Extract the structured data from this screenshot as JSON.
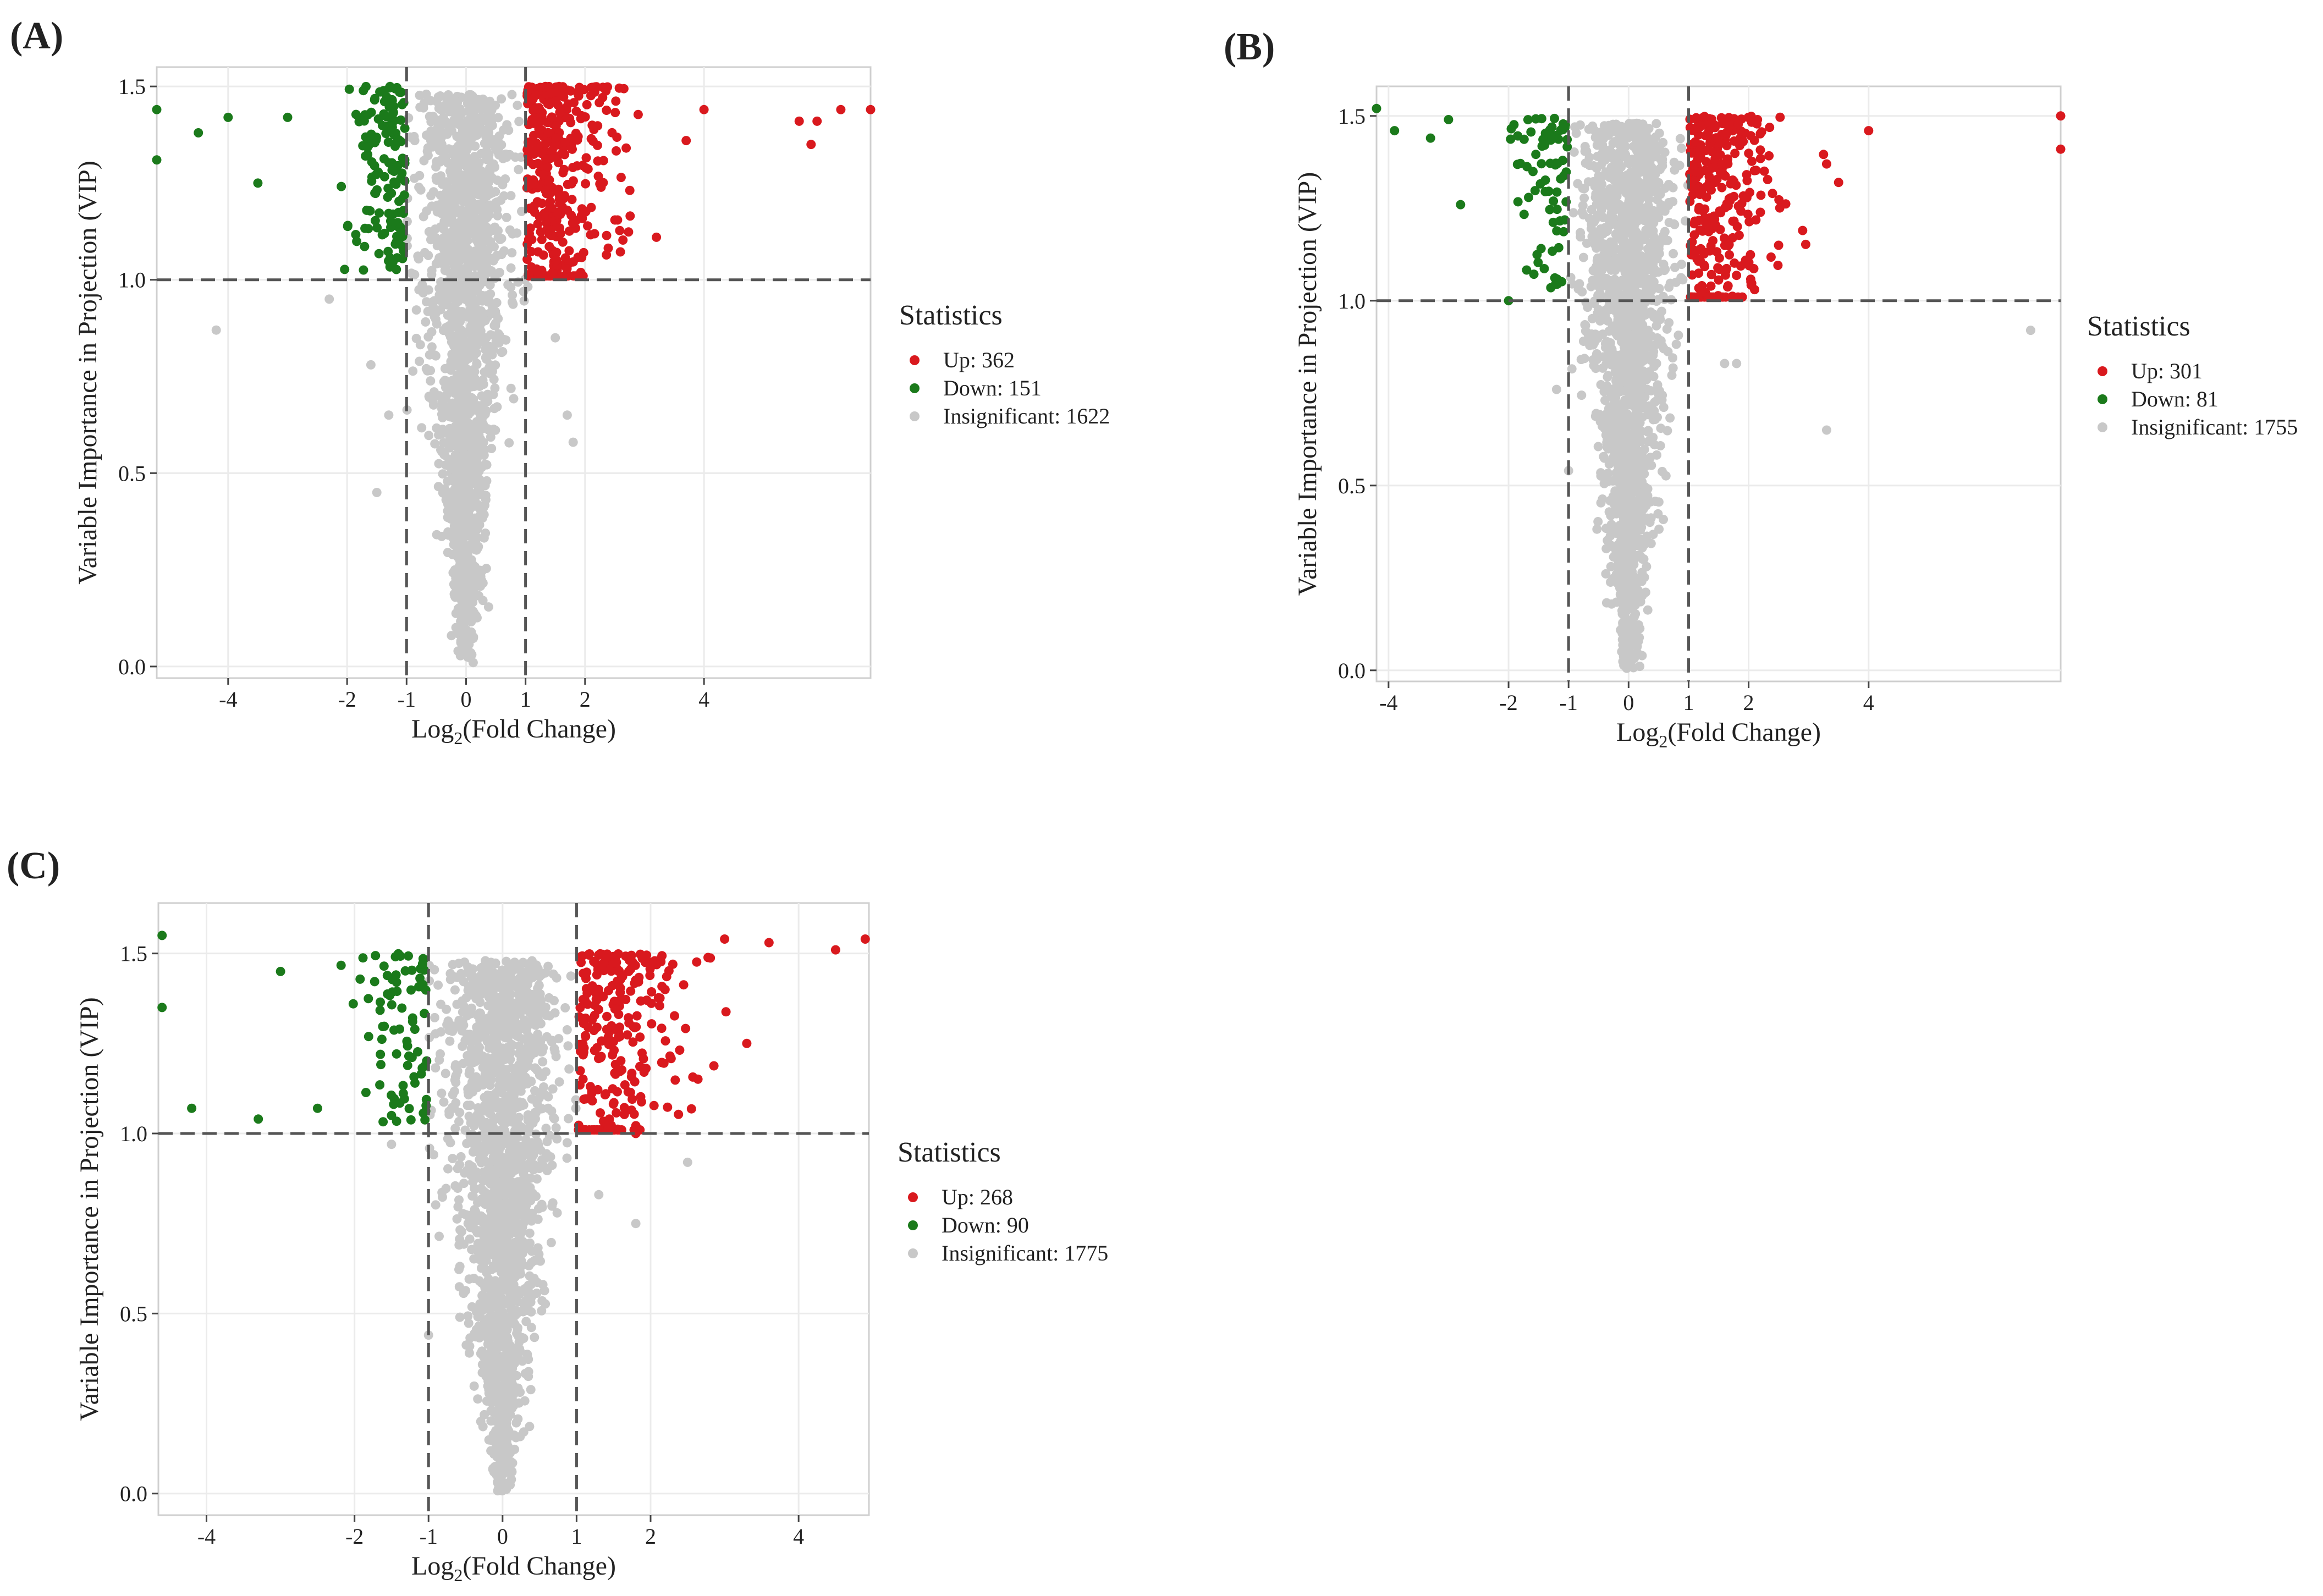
{
  "figure": {
    "theme": {
      "up_color": "#d9191e",
      "down_color": "#1b7a1b",
      "insig_color": "#c8c8c8",
      "grid_color": "#ebebeb",
      "frame_color": "#cfcfcf",
      "dashed_color": "#555555",
      "text_color": "#222222"
    }
  },
  "chart_data": [
    {
      "type": "scatter",
      "panel_label": "(A)",
      "title": "",
      "xlabel": "Log2(Fold Change)",
      "xlabel_main": "Log",
      "xlabel_sub": "2",
      "xlabel_rest": "(Fold Change)",
      "ylabel": "Variable Importance in Projection (VIP)",
      "xlim": [
        -5.2,
        6.8
      ],
      "ylim": [
        -0.03,
        1.55
      ],
      "xticks": [
        -4,
        -2,
        -1,
        0,
        1,
        2,
        4
      ],
      "xtick_labels": [
        "-4",
        "-2",
        "-1",
        "0",
        "1",
        "2",
        "4"
      ],
      "yticks": [
        0.0,
        0.5,
        1.0,
        1.5
      ],
      "ytick_labels": [
        "0.0",
        "0.5",
        "1.0",
        "1.5"
      ],
      "thresholds": {
        "x": [
          -1,
          1
        ],
        "y": 1.0
      },
      "grid": true,
      "legend": {
        "title": "Statistics",
        "position": "right",
        "entries": [
          {
            "key": "up",
            "label": "Up: 362"
          },
          {
            "key": "down",
            "label": "Down: 151"
          },
          {
            "key": "insig",
            "label": "Insignificant: 1622"
          }
        ]
      },
      "series": [
        {
          "name": "Up",
          "count": 362
        },
        {
          "name": "Down",
          "count": 151
        },
        {
          "name": "Insignificant",
          "count": 1622
        }
      ],
      "extreme_points": {
        "up": [
          [
            6.8,
            1.44
          ],
          [
            6.3,
            1.44
          ],
          [
            5.9,
            1.41
          ],
          [
            5.8,
            1.35
          ],
          [
            5.6,
            1.41
          ],
          [
            4.0,
            1.44
          ],
          [
            3.7,
            1.36
          ],
          [
            3.2,
            1.11
          ]
        ],
        "down": [
          [
            -5.2,
            1.44
          ],
          [
            -5.2,
            1.31
          ],
          [
            -4.5,
            1.38
          ],
          [
            -4.0,
            1.42
          ],
          [
            -3.5,
            1.25
          ],
          [
            -3.0,
            1.42
          ]
        ],
        "insig": [
          [
            -4.2,
            0.87
          ],
          [
            -2.3,
            0.95
          ],
          [
            -1.6,
            0.78
          ],
          [
            -1.5,
            0.45
          ],
          [
            -1.3,
            0.65
          ],
          [
            1.5,
            0.85
          ],
          [
            1.8,
            0.58
          ],
          [
            1.7,
            0.65
          ]
        ]
      }
    },
    {
      "type": "scatter",
      "panel_label": "(B)",
      "title": "",
      "xlabel": "Log2(Fold Change)",
      "xlabel_main": "Log",
      "xlabel_sub": "2",
      "xlabel_rest": "(Fold Change)",
      "ylabel": "Variable Importance in Projection (VIP)",
      "xlim": [
        -4.2,
        7.2
      ],
      "ylim": [
        -0.03,
        1.58
      ],
      "xticks": [
        -4,
        -2,
        -1,
        0,
        1,
        2,
        4
      ],
      "xtick_labels": [
        "-4",
        "-2",
        "-1",
        "0",
        "1",
        "2",
        "4"
      ],
      "yticks": [
        0.0,
        0.5,
        1.0,
        1.5
      ],
      "ytick_labels": [
        "0.0",
        "0.5",
        "1.0",
        "1.5"
      ],
      "thresholds": {
        "x": [
          -1,
          1
        ],
        "y": 1.0
      },
      "grid": true,
      "legend": {
        "title": "Statistics",
        "position": "right",
        "entries": [
          {
            "key": "up",
            "label": "Up: 301"
          },
          {
            "key": "down",
            "label": "Down: 81"
          },
          {
            "key": "insig",
            "label": "Insignificant: 1755"
          }
        ]
      },
      "series": [
        {
          "name": "Up",
          "count": 301
        },
        {
          "name": "Down",
          "count": 81
        },
        {
          "name": "Insignificant",
          "count": 1755
        }
      ],
      "extreme_points": {
        "up": [
          [
            7.2,
            1.5
          ],
          [
            7.2,
            1.41
          ],
          [
            4.0,
            1.46
          ],
          [
            3.5,
            1.32
          ],
          [
            3.3,
            1.37
          ],
          [
            2.9,
            1.19
          ],
          [
            2.5,
            1.15
          ],
          [
            2.1,
            1.03
          ]
        ],
        "down": [
          [
            -4.2,
            1.52
          ],
          [
            -3.9,
            1.46
          ],
          [
            -3.3,
            1.44
          ],
          [
            -3.0,
            1.49
          ],
          [
            -2.8,
            1.26
          ],
          [
            -2.0,
            1.0
          ]
        ],
        "insig": [
          [
            6.7,
            0.92
          ],
          [
            3.3,
            0.65
          ],
          [
            1.6,
            0.83
          ],
          [
            1.8,
            0.83
          ],
          [
            -1.0,
            0.54
          ],
          [
            -1.2,
            0.76
          ]
        ]
      }
    },
    {
      "type": "scatter",
      "panel_label": "(C)",
      "title": "",
      "xlabel": "Log2(Fold Change)",
      "xlabel_main": "Log",
      "xlabel_sub": "2",
      "xlabel_rest": "(Fold Change)",
      "ylabel": "Variable Importance in Projection (VIP)",
      "xlim": [
        -4.65,
        4.95
      ],
      "ylim": [
        -0.06,
        1.64
      ],
      "xticks": [
        -4,
        -2,
        -1,
        0,
        1,
        2,
        4
      ],
      "xtick_labels": [
        "-4",
        "-2",
        "-1",
        "0",
        "1",
        "2",
        "4"
      ],
      "yticks": [
        0.0,
        0.5,
        1.0,
        1.5
      ],
      "ytick_labels": [
        "0.0",
        "0.5",
        "1.0",
        "1.5"
      ],
      "thresholds": {
        "x": [
          -1,
          1
        ],
        "y": 1.0
      },
      "grid": true,
      "legend": {
        "title": "Statistics",
        "position": "right",
        "entries": [
          {
            "key": "up",
            "label": "Up: 268"
          },
          {
            "key": "down",
            "label": "Down: 90"
          },
          {
            "key": "insig",
            "label": "Insignificant: 1775"
          }
        ]
      },
      "series": [
        {
          "name": "Up",
          "count": 268
        },
        {
          "name": "Down",
          "count": 90
        },
        {
          "name": "Insignificant",
          "count": 1775
        }
      ],
      "extreme_points": {
        "up": [
          [
            4.9,
            1.54
          ],
          [
            4.5,
            1.51
          ],
          [
            3.6,
            1.53
          ],
          [
            3.0,
            1.54
          ],
          [
            2.3,
            1.47
          ],
          [
            3.3,
            1.25
          ],
          [
            1.8,
            1.0
          ]
        ],
        "down": [
          [
            -4.6,
            1.55
          ],
          [
            -4.6,
            1.35
          ],
          [
            -4.2,
            1.07
          ],
          [
            -3.3,
            1.04
          ],
          [
            -3.0,
            1.45
          ],
          [
            -2.5,
            1.07
          ],
          [
            -1.5,
            1.05
          ]
        ],
        "insig": [
          [
            2.5,
            0.92
          ],
          [
            1.8,
            0.75
          ],
          [
            -1.5,
            0.97
          ],
          [
            -1.0,
            0.44
          ],
          [
            1.3,
            0.83
          ]
        ]
      }
    }
  ]
}
